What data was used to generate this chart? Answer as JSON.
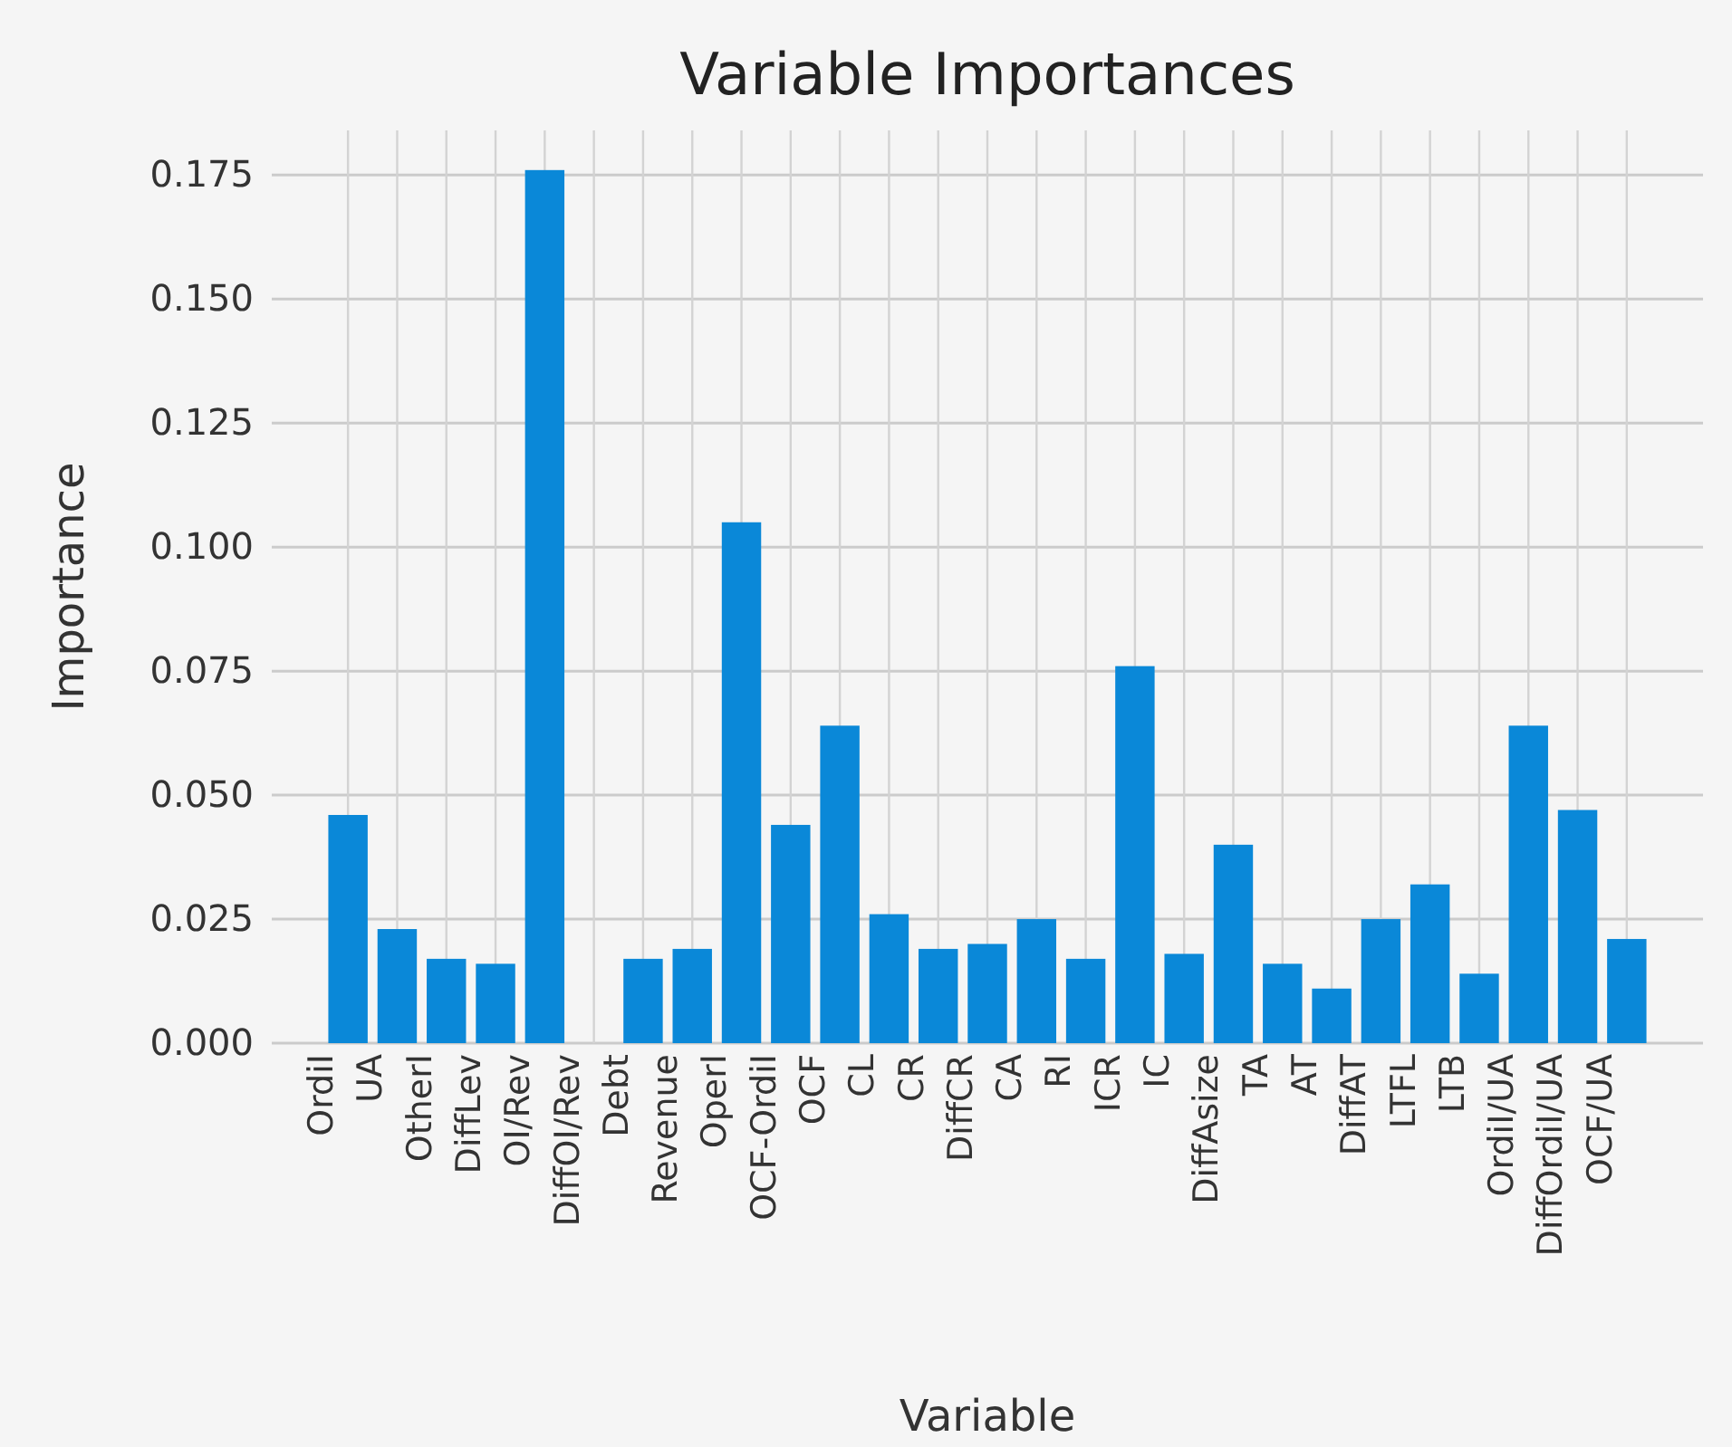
{
  "chart_data": {
    "type": "bar",
    "title": "Variable Importances",
    "xlabel": "Variable",
    "ylabel": "Importance",
    "categories": [
      "OrdiI",
      "UA",
      "OtherI",
      "DiffLev",
      "OI/Rev",
      "DiffOI/Rev",
      "Debt",
      "Revenue",
      "OperI",
      "OCF-OrdiI",
      "OCF",
      "CL",
      "CR",
      "DiffCR",
      "CA",
      "RI",
      "ICR",
      "IC",
      "DiffAsize",
      "TA",
      "AT",
      "DiffAT",
      "LTFL",
      "LTB",
      "OrdiI/UA",
      "DiffOrdiI/UA",
      "OCF/UA"
    ],
    "values": [
      0.046,
      0.023,
      0.017,
      0.016,
      0.176,
      0,
      0.017,
      0.019,
      0.105,
      0.044,
      0.064,
      0.026,
      0.019,
      0.02,
      0.025,
      0.017,
      0.076,
      0.018,
      0.04,
      0.016,
      0.011,
      0.025,
      0.032,
      0.014,
      0.064,
      0.047,
      0.021
    ],
    "color": "#0a88d8",
    "ylim": [
      0,
      0.184
    ],
    "yticks": [
      {
        "value": 0,
        "label": "0.000"
      },
      {
        "value": 0.025,
        "label": "0.025"
      },
      {
        "value": 0.05,
        "label": "0.050"
      },
      {
        "value": 0.075,
        "label": "0.075"
      },
      {
        "value": 0.1,
        "label": "0.100"
      },
      {
        "value": 0.125,
        "label": "0.125"
      },
      {
        "value": 0.15,
        "label": "0.150"
      },
      {
        "value": 0.175,
        "label": "0.175"
      }
    ],
    "grid": true
  }
}
